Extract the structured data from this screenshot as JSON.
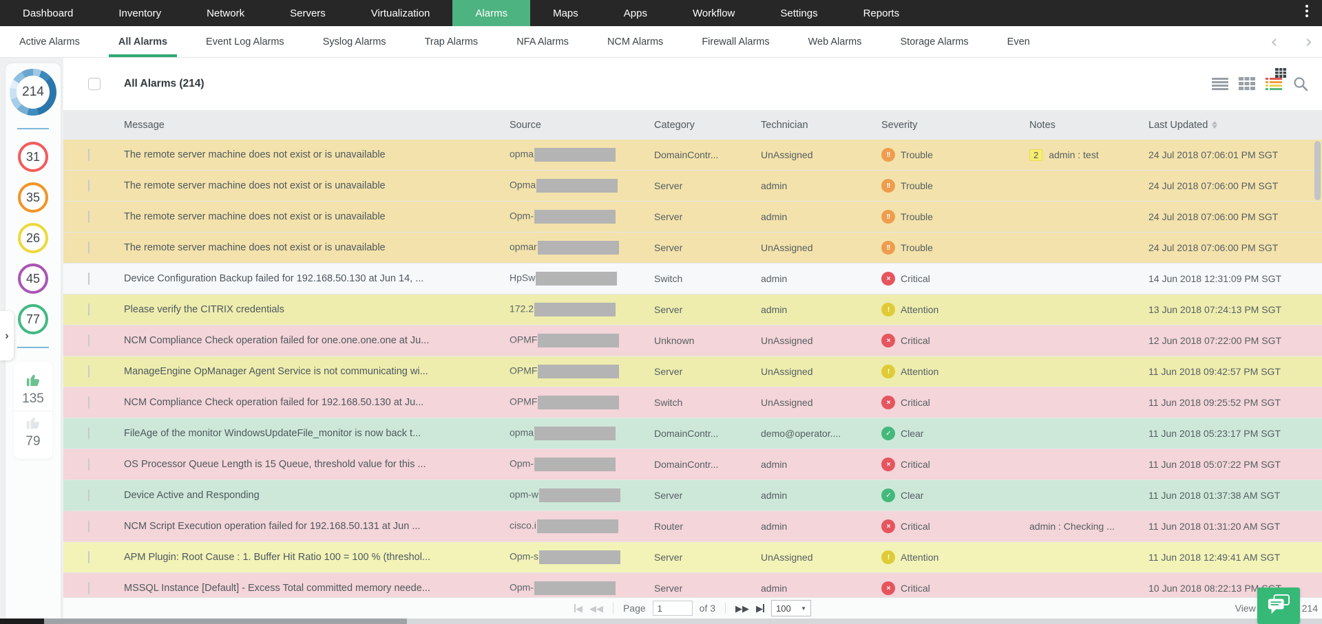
{
  "topnav": {
    "items": [
      "Dashboard",
      "Inventory",
      "Network",
      "Servers",
      "Virtualization",
      "Alarms",
      "Maps",
      "Apps",
      "Workflow",
      "Settings",
      "Reports"
    ],
    "active": "Alarms",
    "active_color": "#4db380"
  },
  "tabs": {
    "items": [
      "Active Alarms",
      "All Alarms",
      "Event Log Alarms",
      "Syslog Alarms",
      "Trap Alarms",
      "NFA Alarms",
      "NCM Alarms",
      "Firewall Alarms",
      "Web Alarms",
      "Storage Alarms",
      "Even"
    ],
    "active": "All Alarms",
    "underline_color": "#2fa874",
    "prev_arrow": "‹",
    "next_arrow": "›"
  },
  "sidebar": {
    "total_alarms": "214",
    "donut_colors": [
      "#2a76aa",
      "#3f8cbe",
      "#78afd4",
      "#a7cde8",
      "#c9e2f2",
      "#9fc8e4"
    ],
    "severity_counts": [
      {
        "name": "critical",
        "value": "31",
        "color": "#f25c5c"
      },
      {
        "name": "trouble",
        "value": "35",
        "color": "#f39426"
      },
      {
        "name": "attention",
        "value": "26",
        "color": "#ecd93b"
      },
      {
        "name": "service-down",
        "value": "45",
        "color": "#a955b5"
      },
      {
        "name": "clear",
        "value": "77",
        "color": "#41b983"
      }
    ],
    "acknowledged_count": "135",
    "unacknowledged_count": "79",
    "thumb_active_color": "#6cc191",
    "thumb_inactive_color": "#e3e6e8",
    "expand_arrow": "›"
  },
  "toolbar": {
    "title": "All Alarms (214)",
    "view_icons": [
      "list-view-icon",
      "table-view-icon",
      "color-list-view-icon",
      "search-icon"
    ]
  },
  "table": {
    "columns": [
      "Message",
      "Source",
      "Category",
      "Technician",
      "Severity",
      "Notes",
      "Last Updated"
    ],
    "severity_styles": {
      "Trouble": {
        "color": "#ee9d4d",
        "glyph": "!!"
      },
      "Critical": {
        "color": "#e6555e",
        "glyph": "×"
      },
      "Attention": {
        "color": "#dfcb35",
        "glyph": "!"
      },
      "Clear": {
        "color": "#44b97c",
        "glyph": "✓"
      }
    },
    "rows": [
      {
        "bg": "#f3e2ab",
        "message": "The remote server machine does not exist or is unavailable",
        "source_prefix": "opma",
        "redacted": true,
        "category": "DomainContr...",
        "technician": "UnAssigned",
        "severity": "Trouble",
        "note_badge": "2",
        "note": "admin : test",
        "last_updated": "24 Jul 2018 07:06:01 PM SGT"
      },
      {
        "bg": "#f3e2ab",
        "message": "The remote server machine does not exist or is unavailable",
        "source_prefix": "Opma",
        "redacted": true,
        "category": "Server",
        "technician": "admin",
        "severity": "Trouble",
        "last_updated": "24 Jul 2018 07:06:00 PM SGT"
      },
      {
        "bg": "#f3e2ab",
        "message": "The remote server machine does not exist or is unavailable",
        "source_prefix": "Opm-",
        "redacted": true,
        "category": "Server",
        "technician": "admin",
        "severity": "Trouble",
        "last_updated": "24 Jul 2018 07:06:00 PM SGT"
      },
      {
        "bg": "#f3e2ab",
        "message": "The remote server machine does not exist or is unavailable",
        "source_prefix": "opmar",
        "redacted": true,
        "category": "Server",
        "technician": "UnAssigned",
        "severity": "Trouble",
        "last_updated": "24 Jul 2018 07:06:00 PM SGT"
      },
      {
        "bg": "#f7f8fa",
        "message": "Device Configuration Backup failed for 192.168.50.130 at Jun 14, ...",
        "source_prefix": "HpSw",
        "redacted": true,
        "category": "Switch",
        "technician": "admin",
        "severity": "Critical",
        "last_updated": "14 Jun 2018 12:31:09 PM SGT"
      },
      {
        "bg": "#eeedae",
        "message": "Please verify the CITRIX credentials",
        "source_prefix": "172.2",
        "redacted": true,
        "category": "Server",
        "technician": "admin",
        "severity": "Attention",
        "last_updated": "13 Jun 2018 07:24:13 PM SGT"
      },
      {
        "bg": "#f4d5d9",
        "message": "NCM Compliance Check operation failed for one.one.one.one at Ju...",
        "source_prefix": "OPMF",
        "redacted": true,
        "category": "Unknown",
        "technician": "UnAssigned",
        "severity": "Critical",
        "last_updated": "12 Jun 2018 07:22:00 PM SGT"
      },
      {
        "bg": "#eeedae",
        "message": "ManageEngine OpManager Agent Service is not communicating wi...",
        "source_prefix": "OPMF",
        "redacted": true,
        "category": "Server",
        "technician": "UnAssigned",
        "severity": "Attention",
        "last_updated": "11 Jun 2018 09:42:57 PM SGT"
      },
      {
        "bg": "#f4d5d9",
        "message": "NCM Compliance Check operation failed for 192.168.50.130 at Ju...",
        "source_prefix": "OPMF",
        "redacted": true,
        "category": "Switch",
        "technician": "UnAssigned",
        "severity": "Critical",
        "last_updated": "11 Jun 2018 09:25:52 PM SGT"
      },
      {
        "bg": "#cde8d9",
        "message": "FileAge of the monitor WindowsUpdateFile_monitor is now back t...",
        "source_prefix": "opma",
        "redacted": true,
        "category": "DomainContr...",
        "technician": "demo@operator....",
        "severity": "Clear",
        "last_updated": "11 Jun 2018 05:23:17 PM SGT"
      },
      {
        "bg": "#f4d5d9",
        "message": "OS Processor Queue Length is 15 Queue, threshold value for this ...",
        "source_prefix": "Opm-",
        "redacted": true,
        "category": "DomainContr...",
        "technician": "admin",
        "severity": "Critical",
        "last_updated": "11 Jun 2018 05:07:22 PM SGT"
      },
      {
        "bg": "#cde8d9",
        "message": "Device Active and Responding",
        "source_prefix": "opm-w",
        "redacted": true,
        "category": "Server",
        "technician": "admin",
        "severity": "Clear",
        "last_updated": "11 Jun 2018 01:37:38 AM SGT"
      },
      {
        "bg": "#f4d5d9",
        "message": "NCM Script Execution operation failed for 192.168.50.131 at Jun ...",
        "source_prefix": "cisco.i",
        "redacted": true,
        "category": "Router",
        "technician": "admin",
        "severity": "Critical",
        "note": "admin : Checking ...",
        "last_updated": "11 Jun 2018 01:31:20 AM SGT"
      },
      {
        "bg": "#f3f3b8",
        "message": "APM Plugin: Root Cause : 1. Buffer Hit Ratio 100 = 100 % (threshol...",
        "source_prefix": "Opm-s",
        "redacted": true,
        "category": "Server",
        "technician": "UnAssigned",
        "severity": "Attention",
        "last_updated": "11 Jun 2018 12:49:41 AM SGT"
      },
      {
        "bg": "#f4d5d9",
        "message": "MSSQL Instance [Default] - Excess Total committed memory neede...",
        "source_prefix": "Opm-",
        "redacted": true,
        "category": "Server",
        "technician": "admin",
        "severity": "Critical",
        "last_updated": "10 Jun 2018 08:22:13 PM SGT"
      }
    ]
  },
  "pagination": {
    "page_label": "Page",
    "page_value": "1",
    "of_label": "of 3",
    "page_size": "100",
    "view_text": "View 1 - 100 of 214"
  }
}
